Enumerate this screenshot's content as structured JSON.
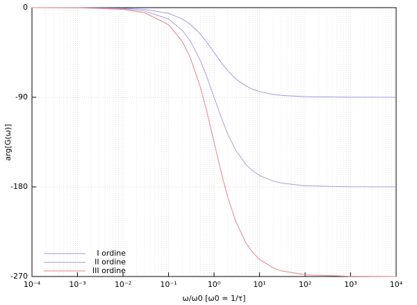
{
  "chart_data": {
    "type": "line",
    "x_label": "ω/ω0 [ω0 = 1/τ]",
    "y_label": "arg[G(ω)]",
    "x_scale": "log",
    "grid": true,
    "legend": "lower left",
    "xlim": [
      0.0001,
      10000
    ],
    "xticks": [
      {
        "value": 0.0001,
        "label": "10⁻⁴"
      },
      {
        "value": 0.001,
        "label": "10⁻³"
      },
      {
        "value": 0.01,
        "label": "10⁻²"
      },
      {
        "value": 0.1,
        "label": "10⁻¹"
      },
      {
        "value": 1,
        "label": "10⁰"
      },
      {
        "value": 10,
        "label": "10¹"
      },
      {
        "value": 100,
        "label": "10²"
      },
      {
        "value": 1000,
        "label": "10³"
      },
      {
        "value": 10000,
        "label": "10⁴"
      }
    ],
    "ylim": [
      -270,
      0
    ],
    "yticks": [
      0,
      -90,
      -180,
      -270
    ],
    "x": [
      0.0001,
      0.001,
      0.01,
      0.03,
      0.1,
      0.2,
      0.3,
      0.5,
      0.7,
      1,
      1.5,
      2,
      3,
      5,
      7,
      10,
      20,
      30,
      100,
      1000,
      10000
    ],
    "series": [
      {
        "name": "I ordine",
        "color": "#9a9ae8",
        "values": [
          -0.01,
          -0.06,
          -0.57,
          -1.72,
          -5.71,
          -11.31,
          -16.7,
          -26.57,
          -34.99,
          -45,
          -56.31,
          -63.43,
          -71.57,
          -78.69,
          -81.87,
          -84.29,
          -87.14,
          -88.09,
          -89.43,
          -89.94,
          -89.99
        ]
      },
      {
        "name": "II ordine",
        "color": "#b09ad8",
        "values": [
          -0.01,
          -0.11,
          -1.15,
          -3.44,
          -11.42,
          -22.62,
          -33.4,
          -53.13,
          -69.98,
          -90,
          -112.62,
          -126.87,
          -143.13,
          -157.38,
          -163.74,
          -168.58,
          -174.28,
          -176.19,
          -178.85,
          -179.89,
          -179.99
        ]
      },
      {
        "name": "III ordine",
        "color": "#ee8080",
        "values": [
          -0.02,
          -0.17,
          -1.72,
          -5.16,
          -17.13,
          -33.93,
          -50.1,
          -79.7,
          -104.97,
          -135,
          -168.93,
          -190.3,
          -214.7,
          -236.07,
          -245.61,
          -252.87,
          -261.42,
          -264.28,
          -268.28,
          -269.83,
          -269.98
        ]
      }
    ]
  }
}
